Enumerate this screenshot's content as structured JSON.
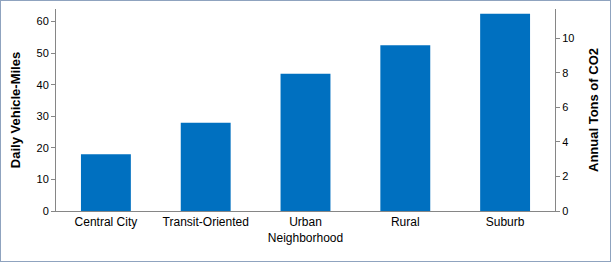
{
  "chart_data": {
    "type": "bar",
    "categories": [
      "Central City",
      "Transit-Oriented",
      "Urban Neighborhood",
      "Rural",
      "Suburb"
    ],
    "values": [
      18,
      28,
      43.5,
      52.5,
      62.5
    ],
    "color": "#0070c0",
    "ylabel": "Daily Vehicle-Miles",
    "ylim": [
      0,
      64
    ],
    "yticks": [
      0,
      10,
      20,
      30,
      40,
      50,
      60
    ],
    "y2label": "Annual Tons of CO2",
    "y2lim": [
      0,
      11.7
    ],
    "y2ticks": [
      0,
      2,
      4,
      6,
      8,
      10
    ],
    "grid": false
  }
}
